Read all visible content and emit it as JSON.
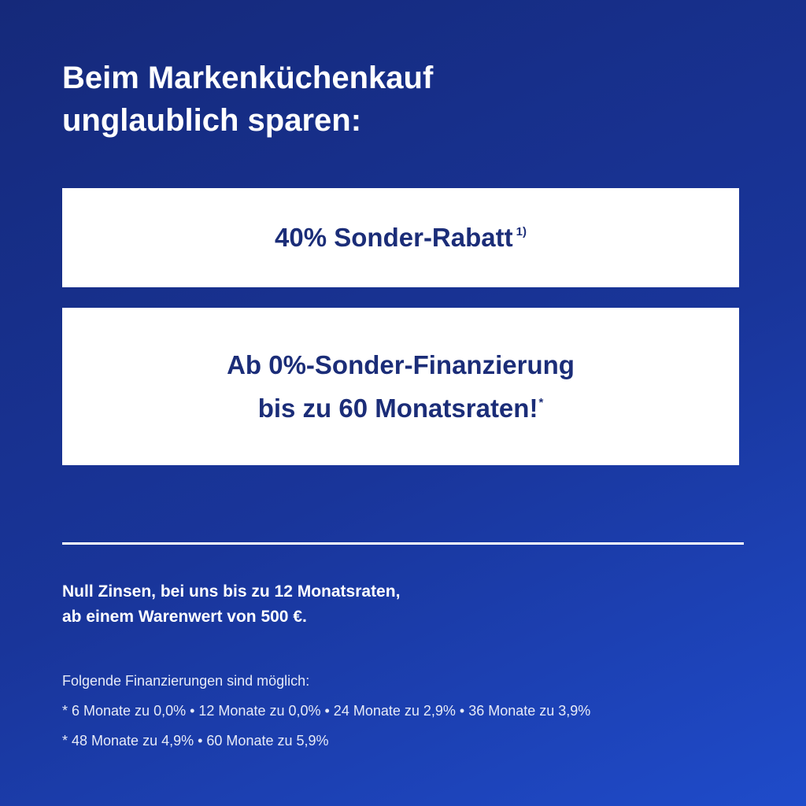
{
  "headline": {
    "line1": "Beim Markenküchenkauf",
    "line2": "unglaublich sparen:"
  },
  "offer1": {
    "text": "40% Sonder-Rabatt",
    "footnote": "1)"
  },
  "offer2": {
    "line1": "Ab 0%-Sonder-Finanzierung",
    "line2": "bis zu 60 Monatsraten!",
    "footnote": "*"
  },
  "subtext": {
    "line1": "Null Zinsen, bei uns bis zu 12 Monatsraten,",
    "line2": "ab einem Warenwert von 500 €."
  },
  "fine_print": {
    "heading": "Folgende Finanzierungen sind möglich:",
    "row1": "* 6 Monate zu 0,0% • 12 Monate zu 0,0% • 24 Monate zu 2,9% • 36 Monate zu 3,9%",
    "row2": "* 48 Monate zu 4,9% • 60 Monate zu 5,9%"
  },
  "colors": {
    "background_top": "#15297a",
    "background_bottom": "#1f4bca",
    "box": "#ffffff",
    "box_text": "#1b2d78"
  }
}
